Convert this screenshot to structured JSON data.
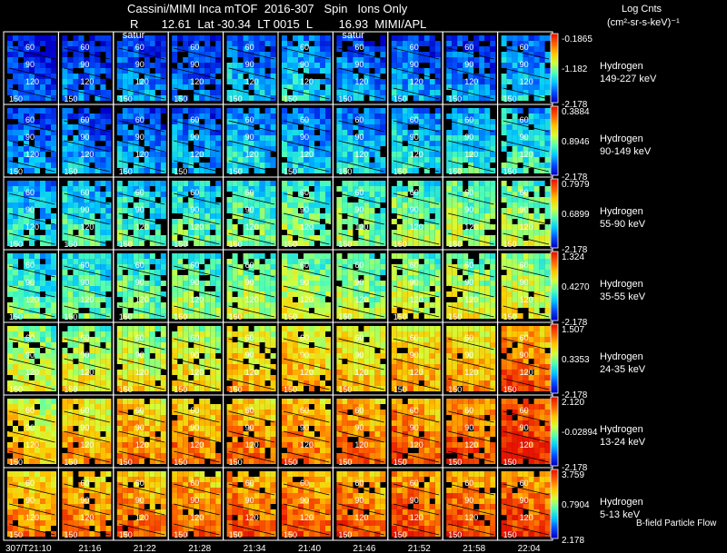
{
  "header": {
    "title": "Cassini/MIMI Inca mTOF  2016-307   Spin   Ions Only",
    "subtitle": "R       12.61  Lat -30.34  LT 0015  L        16.93  MIMI/APL",
    "legend_title": "Log Cnts",
    "legend_unit": "(cm²-sr-s-keV)⁻¹"
  },
  "footer_note": "B-field Particle Flow",
  "colors": {
    "background": "#000000",
    "grid": "#ffffff",
    "colormap": [
      "#0000c8",
      "#0050ff",
      "#00c8ff",
      "#50ffb4",
      "#d2ff3c",
      "#ffc800",
      "#ff6400",
      "#e61400"
    ]
  },
  "chart_data": {
    "type": "heatmap",
    "time_labels": [
      "307/T21:10",
      "21:16",
      "21:22",
      "21:28",
      "21:34",
      "21:40",
      "21:46",
      "21:52",
      "21:58",
      "22:04"
    ],
    "saturn_marker_columns": [
      2,
      6
    ],
    "saturn_label": "satur",
    "pitch_angle_contours": [
      "60",
      "90",
      "120",
      "150"
    ],
    "channels": [
      {
        "species": "Hydrogen",
        "energy": "149-227 keV",
        "cbar_max": "-0.1865",
        "cbar_mid": "-1.182",
        "cbar_min": "-2.178",
        "intensity": [
          0.05,
          0.08,
          0.12,
          0.1,
          0.18,
          0.22,
          0.14,
          0.14,
          0.12,
          0.2
        ]
      },
      {
        "species": "Hydrogen",
        "energy": "90-149 keV",
        "cbar_max": "0.3884",
        "cbar_mid": "0.8946",
        "cbar_min": "-2.178",
        "intensity": [
          0.14,
          0.14,
          0.14,
          0.16,
          0.24,
          0.2,
          0.22,
          0.26,
          0.28,
          0.3
        ]
      },
      {
        "species": "Hydrogen",
        "energy": "55-90 keV",
        "cbar_max": "0.7979",
        "cbar_mid": "0.6899",
        "cbar_min": "-2.178",
        "intensity": [
          0.26,
          0.3,
          0.32,
          0.34,
          0.38,
          0.4,
          0.4,
          0.42,
          0.44,
          0.46
        ]
      },
      {
        "species": "Hydrogen",
        "energy": "35-55 keV",
        "cbar_max": "1.324",
        "cbar_mid": "0.4270",
        "cbar_min": "-2.178",
        "intensity": [
          0.36,
          0.36,
          0.38,
          0.42,
          0.46,
          0.48,
          0.44,
          0.48,
          0.5,
          0.52
        ]
      },
      {
        "species": "Hydrogen",
        "energy": "24-35 keV",
        "cbar_max": "1.507",
        "cbar_mid": "0.3353",
        "cbar_min": "-2.178",
        "intensity": [
          0.5,
          0.52,
          0.54,
          0.56,
          0.62,
          0.64,
          0.62,
          0.66,
          0.68,
          0.78
        ]
      },
      {
        "species": "Hydrogen",
        "energy": "13-24 keV",
        "cbar_max": "2.120",
        "cbar_mid": "-0.02894",
        "cbar_min": "-2.178",
        "intensity": [
          0.62,
          0.66,
          0.7,
          0.72,
          0.74,
          0.74,
          0.76,
          0.78,
          0.8,
          0.9
        ]
      },
      {
        "species": "Hydrogen",
        "energy": "5-13 keV",
        "cbar_max": "3.759",
        "cbar_mid": "0.7904",
        "cbar_min": "2.178",
        "intensity": [
          0.7,
          0.72,
          0.74,
          0.76,
          0.78,
          0.78,
          0.78,
          0.8,
          0.8,
          0.82
        ]
      }
    ]
  }
}
